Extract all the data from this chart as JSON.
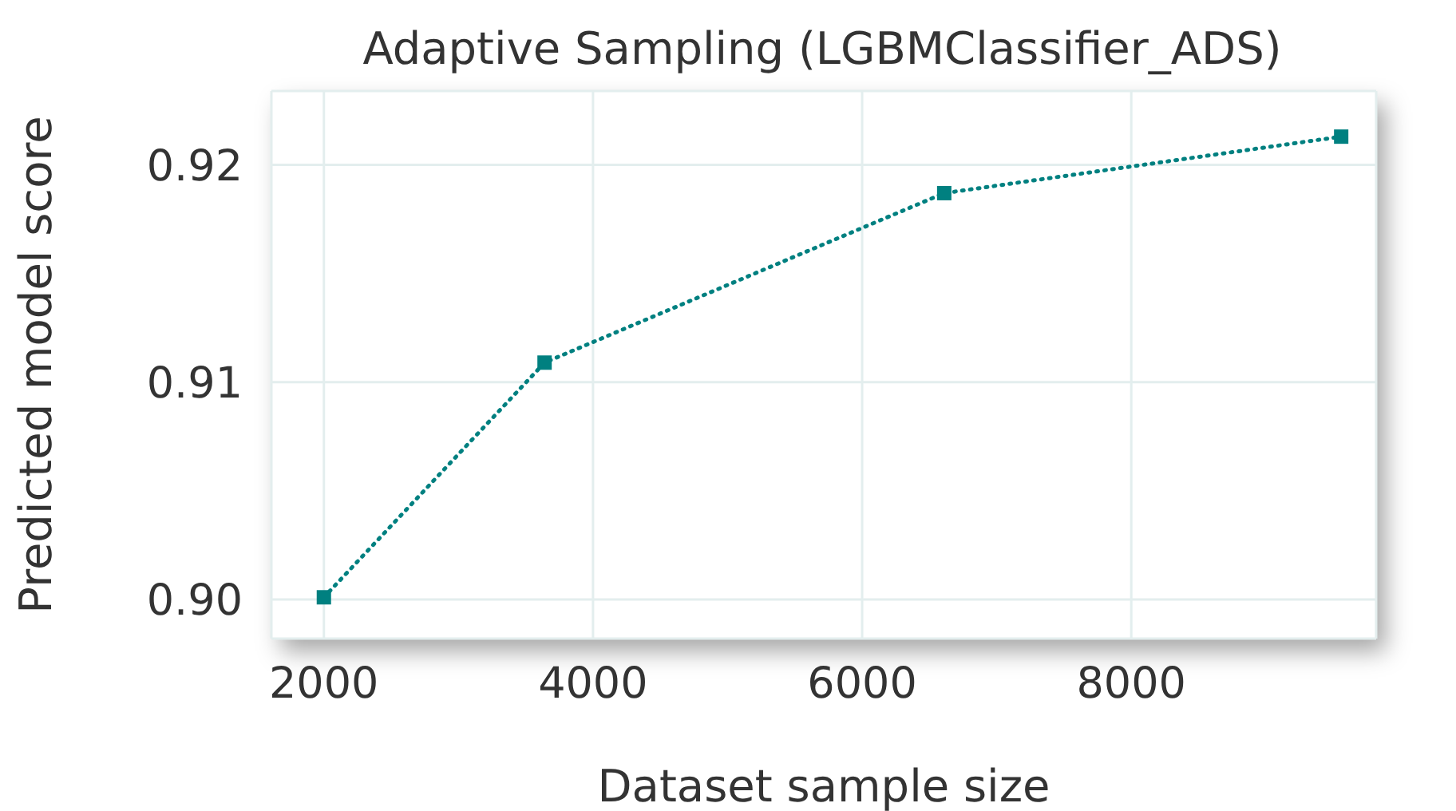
{
  "chart_data": {
    "type": "line",
    "title": "Adaptive Sampling (LGBMClassifier_ADS)",
    "xlabel": "Dataset sample size",
    "ylabel": "Predicted model score",
    "x": [
      2000,
      3640,
      6610,
      9560
    ],
    "series": [
      {
        "color": "#008080",
        "values": [
          0.9001,
          0.9109,
          0.9187,
          0.9213
        ]
      }
    ],
    "xlim": [
      1610,
      9820
    ],
    "xticks": [
      2000,
      4000,
      6000,
      8000
    ],
    "ylim": [
      0.8982,
      0.9234
    ],
    "yticks": [
      {
        "value": 0.9,
        "label": "0.90"
      },
      {
        "value": 0.91,
        "label": "0.91"
      },
      {
        "value": 0.92,
        "label": "0.92"
      }
    ],
    "grid": true,
    "legend": false,
    "marker": "square",
    "line_style": "dotted"
  }
}
